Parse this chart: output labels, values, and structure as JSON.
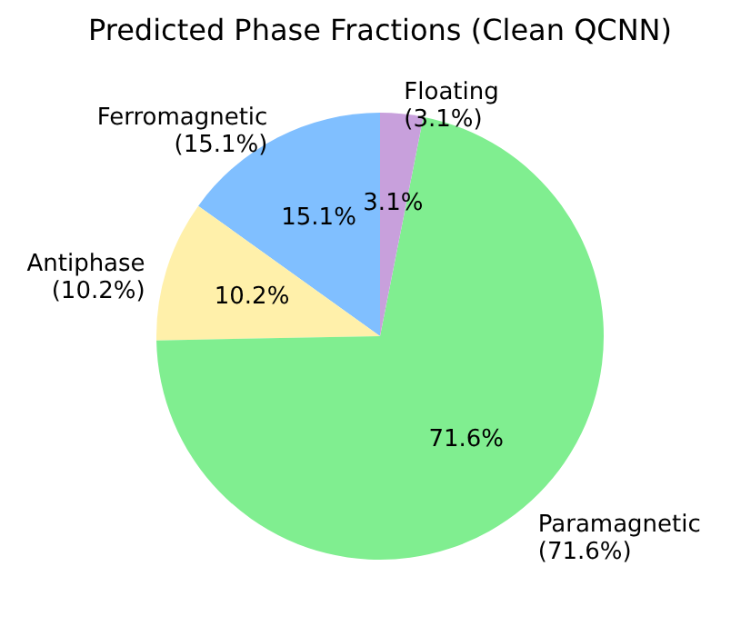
{
  "chart_data": {
    "type": "pie",
    "title": "Predicted Phase Fractions (Clean QCNN)",
    "categories": [
      "Ferromagnetic",
      "Antiphase",
      "Paramagnetic",
      "Floating"
    ],
    "values": [
      15.1,
      10.2,
      71.6,
      3.1
    ],
    "colors": [
      "#80bfff",
      "#fff0aa",
      "#80ee90",
      "#c8a0dc"
    ],
    "value_labels": [
      "15.1%",
      "10.2%",
      "71.6%",
      "3.1%"
    ],
    "annotations": [
      "(15.1%)",
      "(10.2%)",
      "(71.6%)",
      "(3.1%)"
    ]
  }
}
